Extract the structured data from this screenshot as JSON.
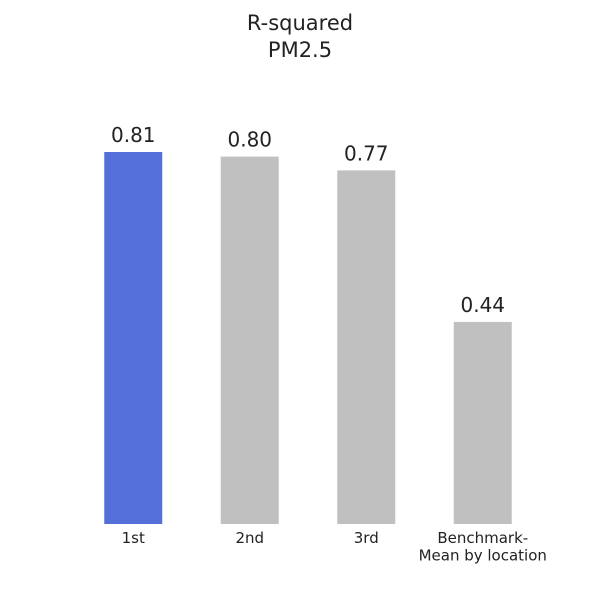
{
  "chart_data": {
    "type": "bar",
    "title": "R-squared",
    "subtitle": "PM2.5",
    "categories": [
      "1st",
      "2nd",
      "3rd",
      "Benchmark-\nMean by location"
    ],
    "values": [
      0.81,
      0.8,
      0.77,
      0.44
    ],
    "value_labels": [
      "0.81",
      "0.80",
      "0.77",
      "0.44"
    ],
    "colors": [
      "#5470d8",
      "#c0c0c0",
      "#c0c0c0",
      "#c0c0c0"
    ]
  }
}
